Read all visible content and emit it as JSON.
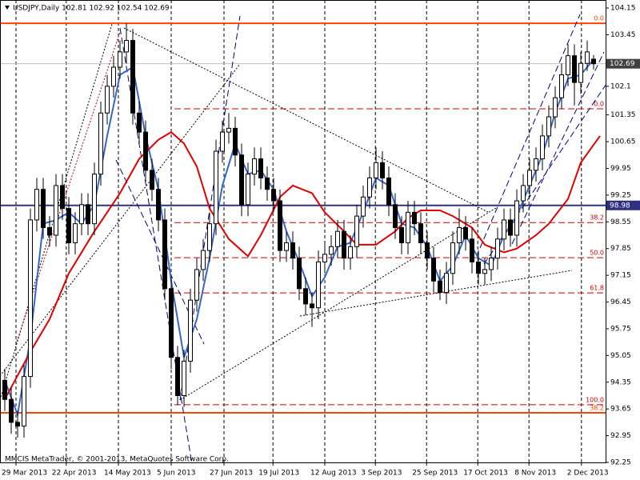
{
  "chart_data": {
    "type": "candlestick",
    "title": "USDJPY,Daily  102.81 102.92 102.54 102.69",
    "footer": "MMCIS MetaTrader, © 2001-2013, MetaQuotes Software Corp.",
    "candle_fields": [
      "open",
      "high",
      "low",
      "close"
    ],
    "candles": [
      [
        94.4,
        94.7,
        93.6,
        93.9
      ],
      [
        93.9,
        94.2,
        93.0,
        93.3
      ],
      [
        93.3,
        93.6,
        92.9,
        93.2
      ],
      [
        93.2,
        94.8,
        92.9,
        94.5
      ],
      [
        94.5,
        98.9,
        94.2,
        98.6
      ],
      [
        98.6,
        99.7,
        98.3,
        99.4
      ],
      [
        99.4,
        99.7,
        98.1,
        98.4
      ],
      [
        98.4,
        98.7,
        97.9,
        98.2
      ],
      [
        98.2,
        99.8,
        97.9,
        99.5
      ],
      [
        99.5,
        99.8,
        98.6,
        98.9
      ],
      [
        98.9,
        99.2,
        97.7,
        98.0
      ],
      [
        98.0,
        98.8,
        97.7,
        98.5
      ],
      [
        98.5,
        99.3,
        98.2,
        99.0
      ],
      [
        99.0,
        99.3,
        98.2,
        98.5
      ],
      [
        98.5,
        100.1,
        98.2,
        99.8
      ],
      [
        99.8,
        101.7,
        99.5,
        101.4
      ],
      [
        101.4,
        102.4,
        101.1,
        102.1
      ],
      [
        102.1,
        102.9,
        101.8,
        102.6
      ],
      [
        102.6,
        103.3,
        102.3,
        103.0
      ],
      [
        103.0,
        103.75,
        102.7,
        103.3
      ],
      [
        103.3,
        103.6,
        101.1,
        101.4
      ],
      [
        101.4,
        101.7,
        100.6,
        100.9
      ],
      [
        100.9,
        101.2,
        99.6,
        99.9
      ],
      [
        99.9,
        100.2,
        99.1,
        99.4
      ],
      [
        99.4,
        99.7,
        98.3,
        98.6
      ],
      [
        98.6,
        98.9,
        96.5,
        96.8
      ],
      [
        96.8,
        97.1,
        94.7,
        95.0
      ],
      [
        95.0,
        95.3,
        93.75,
        94.0
      ],
      [
        94.0,
        95.2,
        93.7,
        94.9
      ],
      [
        94.9,
        96.8,
        94.6,
        96.5
      ],
      [
        96.5,
        97.6,
        96.2,
        97.3
      ],
      [
        97.3,
        98.1,
        97.0,
        97.8
      ],
      [
        97.8,
        98.8,
        97.5,
        98.5
      ],
      [
        98.5,
        100.7,
        98.2,
        100.4
      ],
      [
        100.4,
        101.2,
        100.1,
        100.9
      ],
      [
        100.9,
        101.4,
        100.6,
        101.0
      ],
      [
        101.0,
        101.3,
        100.0,
        100.3
      ],
      [
        100.3,
        100.6,
        98.7,
        99.0
      ],
      [
        99.0,
        100.1,
        98.7,
        99.8
      ],
      [
        99.8,
        100.5,
        99.5,
        100.2
      ],
      [
        100.2,
        100.5,
        99.4,
        99.7
      ],
      [
        99.7,
        100.0,
        99.1,
        99.4
      ],
      [
        99.4,
        99.7,
        98.8,
        99.1
      ],
      [
        99.1,
        99.4,
        97.5,
        97.8
      ],
      [
        97.8,
        98.3,
        97.5,
        98.0
      ],
      [
        98.0,
        98.3,
        97.3,
        97.6
      ],
      [
        97.6,
        97.9,
        96.5,
        96.8
      ],
      [
        96.8,
        97.1,
        96.1,
        96.4
      ],
      [
        96.4,
        96.7,
        95.8,
        96.3
      ],
      [
        96.3,
        97.8,
        96.0,
        97.5
      ],
      [
        97.5,
        98.0,
        97.2,
        97.7
      ],
      [
        97.7,
        98.2,
        97.4,
        97.9
      ],
      [
        97.9,
        98.6,
        97.6,
        98.3
      ],
      [
        98.3,
        98.6,
        97.3,
        97.6
      ],
      [
        97.6,
        98.2,
        97.3,
        97.9
      ],
      [
        97.9,
        99.0,
        97.6,
        98.7
      ],
      [
        98.7,
        99.5,
        98.4,
        99.2
      ],
      [
        99.2,
        100.0,
        98.9,
        99.7
      ],
      [
        99.7,
        100.5,
        99.4,
        100.1
      ],
      [
        100.1,
        100.4,
        99.4,
        99.7
      ],
      [
        99.7,
        100.0,
        98.7,
        99.0
      ],
      [
        99.0,
        99.3,
        98.1,
        98.4
      ],
      [
        98.4,
        98.7,
        97.7,
        98.0
      ],
      [
        98.0,
        99.1,
        97.7,
        98.8
      ],
      [
        98.8,
        99.1,
        98.2,
        98.5
      ],
      [
        98.5,
        98.8,
        97.7,
        98.0
      ],
      [
        98.0,
        98.3,
        97.3,
        97.6
      ],
      [
        97.6,
        97.9,
        96.7,
        97.0
      ],
      [
        97.0,
        97.3,
        96.5,
        96.7
      ],
      [
        96.7,
        97.5,
        96.4,
        97.2
      ],
      [
        97.2,
        98.3,
        96.9,
        98.0
      ],
      [
        98.0,
        98.9,
        97.7,
        98.4
      ],
      [
        98.4,
        98.7,
        97.8,
        98.1
      ],
      [
        98.1,
        98.4,
        97.2,
        97.5
      ],
      [
        97.5,
        97.8,
        96.9,
        97.2
      ],
      [
        97.2,
        97.6,
        96.9,
        97.3
      ],
      [
        97.3,
        97.9,
        97.0,
        97.6
      ],
      [
        97.6,
        98.4,
        97.3,
        98.1
      ],
      [
        98.1,
        98.9,
        97.8,
        98.6
      ],
      [
        98.6,
        98.9,
        97.9,
        98.2
      ],
      [
        98.2,
        99.4,
        97.9,
        99.1
      ],
      [
        99.1,
        99.8,
        98.8,
        99.5
      ],
      [
        99.5,
        100.2,
        99.2,
        99.9
      ],
      [
        99.9,
        100.5,
        99.6,
        100.2
      ],
      [
        100.2,
        101.1,
        99.9,
        100.8
      ],
      [
        100.8,
        101.6,
        100.5,
        101.3
      ],
      [
        101.3,
        102.1,
        101.0,
        101.8
      ],
      [
        101.8,
        102.7,
        101.5,
        102.4
      ],
      [
        102.4,
        103.2,
        102.1,
        102.9
      ],
      [
        102.9,
        103.2,
        101.6,
        102.2
      ],
      [
        102.2,
        103.0,
        101.9,
        102.7
      ],
      [
        102.7,
        103.3,
        102.5,
        103.0
      ],
      [
        102.81,
        102.92,
        102.54,
        102.69
      ]
    ],
    "series": [
      {
        "color": "#3366cc",
        "x": [
          0,
          2,
          4,
          6,
          8,
          10,
          12,
          14,
          16,
          18,
          20,
          22,
          24,
          26,
          28,
          30,
          32,
          34,
          36,
          38,
          40,
          42,
          44,
          46,
          48,
          50,
          52,
          54,
          56,
          58,
          60,
          62,
          64,
          66,
          68,
          70,
          72,
          74,
          76,
          78,
          80,
          82,
          84,
          86,
          88,
          90,
          92
        ],
        "values": [
          94.4,
          93.5,
          95.5,
          98.5,
          98.6,
          98.8,
          98.5,
          99.0,
          100.8,
          102.4,
          102.6,
          100.8,
          99.4,
          97.0,
          95.0,
          96.0,
          97.6,
          99.5,
          100.6,
          99.8,
          99.9,
          99.4,
          98.3,
          97.5,
          96.6,
          97.1,
          97.9,
          98.0,
          98.8,
          99.7,
          99.5,
          98.5,
          98.4,
          97.9,
          97.0,
          97.4,
          98.2,
          97.6,
          97.4,
          98.2,
          98.7,
          99.5,
          100.3,
          101.4,
          102.3,
          102.4,
          102.8
        ]
      },
      {
        "color": "#e00000",
        "x": [
          0,
          4,
          7,
          10,
          14,
          18,
          21,
          24,
          26,
          28,
          30,
          32,
          35,
          38,
          40,
          43,
          45,
          48,
          50,
          53,
          55,
          58,
          61,
          63,
          65,
          68,
          70,
          73,
          75,
          78,
          80,
          83,
          85,
          88,
          90,
          93
        ],
        "values": [
          93.9,
          95.15,
          96.0,
          97.2,
          98.3,
          99.3,
          100.2,
          100.7,
          100.9,
          100.6,
          100.0,
          98.9,
          98.1,
          97.65,
          98.2,
          99.2,
          99.5,
          99.3,
          98.8,
          98.3,
          97.95,
          97.95,
          98.3,
          98.65,
          98.85,
          98.85,
          98.7,
          98.4,
          97.95,
          97.75,
          97.85,
          98.2,
          98.5,
          99.15,
          100.1,
          100.8
        ]
      }
    ],
    "levels": [
      {
        "value": 103.75,
        "label": "0.0",
        "color": "#ff4500",
        "style": "solid"
      },
      {
        "value": 101.51,
        "label": "0.0",
        "color": "#cc0000",
        "style": "dashed"
      },
      {
        "value": 98.53,
        "label": "38.2",
        "color": "#cc0000",
        "style": "dashed"
      },
      {
        "value": 97.61,
        "label": "50.0",
        "color": "#cc0000",
        "style": "dashed"
      },
      {
        "value": 96.69,
        "label": "61.8",
        "color": "#cc0000",
        "style": "dashed"
      },
      {
        "value": 93.76,
        "label": "100.0",
        "color": "#cc0000",
        "style": "dashed"
      },
      {
        "value": 93.55,
        "label": "38.2",
        "color": "#ff4500",
        "style": "solid"
      }
    ],
    "price_marks": [
      {
        "value": 102.69,
        "color": "#c0c0c0",
        "box": "#404040"
      },
      {
        "value": 98.98,
        "color": "#303080",
        "box": "#303080"
      }
    ],
    "ylim": [
      92.25,
      104.15
    ],
    "yticks": [
      104.15,
      103.45,
      102.1,
      101.35,
      100.65,
      99.95,
      99.25,
      98.55,
      97.85,
      97.15,
      96.45,
      95.75,
      95.05,
      94.35,
      93.65,
      92.95,
      92.25
    ],
    "xticks": [
      {
        "value": 1.75,
        "label": "29 Mar 2013"
      },
      {
        "value": 9.6,
        "label": "22 Apr 2013"
      },
      {
        "value": 17.75,
        "label": "14 May 2013"
      },
      {
        "value": 26,
        "label": "5 Jun 2013"
      },
      {
        "value": 34.25,
        "label": "27 Jun 2013"
      },
      {
        "value": 41.9,
        "label": "19 Jul 2013"
      },
      {
        "value": 50,
        "label": "12 Aug 2013"
      },
      {
        "value": 57.9,
        "label": "3 Sep 2013"
      },
      {
        "value": 65.9,
        "label": "25 Sep 2013"
      },
      {
        "value": 73.9,
        "label": "17 Oct 2013"
      },
      {
        "value": 81.9,
        "label": "8 Nov 2013"
      },
      {
        "value": 90.1,
        "label": "2 Dec 2013"
      }
    ],
    "grid": true
  }
}
